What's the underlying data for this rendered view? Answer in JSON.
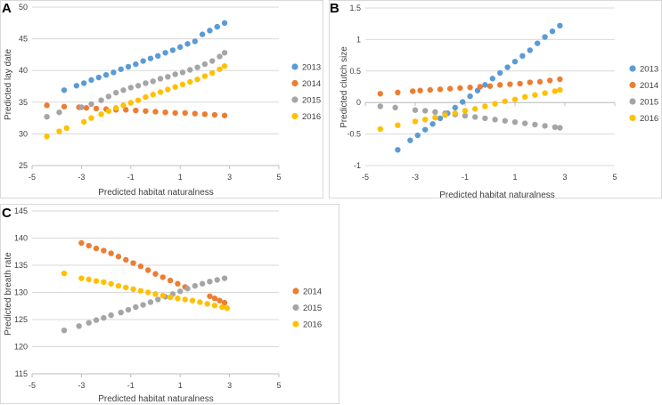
{
  "colors": {
    "2013": "#5b9bd5",
    "2014": "#ed7d31",
    "2015": "#a5a5a5",
    "2016": "#ffc000",
    "grid": "#d9d9d9",
    "axis": "#bfbfbf",
    "text": "#404040"
  },
  "chart_data": [
    {
      "type": "scatter",
      "panel": "A",
      "xlabel": "Predicted habitat naturalness",
      "ylabel": "Predicted lay date",
      "xlim": [
        -5,
        5
      ],
      "ylim": [
        25,
        50
      ],
      "xticks": [
        -5,
        -3,
        -1,
        1,
        3,
        5
      ],
      "xtick_labels": [
        "-5",
        "-3",
        "-1",
        "1",
        "3",
        "5"
      ],
      "yticks": [
        25,
        30,
        35,
        40,
        45,
        50
      ],
      "ytick_labels": [
        "25",
        "30",
        "35",
        "40",
        "45",
        "50"
      ],
      "series": [
        {
          "name": "2013",
          "x": [
            -3.7,
            -3.2,
            -2.9,
            -2.6,
            -2.3,
            -2.0,
            -1.7,
            -1.4,
            -1.1,
            -0.8,
            -0.5,
            -0.2,
            0.1,
            0.4,
            0.7,
            1.0,
            1.3,
            1.6,
            1.9,
            2.2,
            2.5,
            2.8
          ],
          "y": [
            36.9,
            37.6,
            38.0,
            38.5,
            38.9,
            39.3,
            39.7,
            40.2,
            40.6,
            41.0,
            41.5,
            41.9,
            42.3,
            42.8,
            43.2,
            43.7,
            44.2,
            44.6,
            45.7,
            46.3,
            46.9,
            47.5
          ]
        },
        {
          "name": "2014",
          "x": [
            -4.4,
            -3.7,
            -3.1,
            -2.8,
            -2.4,
            -2.0,
            -1.6,
            -1.2,
            -0.8,
            -0.4,
            0.0,
            0.4,
            0.8,
            1.2,
            1.6,
            2.0,
            2.4,
            2.8
          ],
          "y": [
            34.5,
            34.3,
            34.2,
            34.1,
            34.0,
            33.9,
            33.8,
            33.8,
            33.7,
            33.6,
            33.5,
            33.4,
            33.3,
            33.3,
            33.2,
            33.1,
            33.0,
            32.9
          ]
        },
        {
          "name": "2015",
          "x": [
            -4.4,
            -3.9,
            -3.0,
            -2.6,
            -2.2,
            -1.9,
            -1.6,
            -1.3,
            -1.0,
            -0.7,
            -0.4,
            -0.1,
            0.2,
            0.5,
            0.8,
            1.1,
            1.4,
            1.7,
            2.0,
            2.3,
            2.6,
            2.8
          ],
          "y": [
            32.7,
            33.4,
            34.2,
            34.7,
            35.3,
            35.9,
            36.5,
            36.9,
            37.3,
            37.6,
            38.0,
            38.3,
            38.7,
            39.0,
            39.4,
            39.7,
            40.1,
            40.5,
            41.0,
            41.5,
            42.2,
            42.8
          ]
        },
        {
          "name": "2016",
          "x": [
            -4.4,
            -3.9,
            -3.6,
            -2.9,
            -2.6,
            -2.2,
            -1.9,
            -1.6,
            -1.3,
            -1.0,
            -0.7,
            -0.4,
            -0.1,
            0.2,
            0.5,
            0.8,
            1.1,
            1.4,
            1.7,
            2.0,
            2.3,
            2.6,
            2.8
          ],
          "y": [
            29.6,
            30.4,
            30.9,
            31.9,
            32.5,
            33.1,
            33.6,
            34.1,
            34.5,
            34.9,
            35.3,
            35.8,
            36.2,
            36.6,
            37.0,
            37.4,
            37.8,
            38.2,
            38.6,
            39.1,
            39.6,
            40.2,
            40.7
          ]
        }
      ]
    },
    {
      "type": "scatter",
      "panel": "B",
      "xlabel": "Predicted habitat naturalness",
      "ylabel": "Predicted clutch size",
      "xlim": [
        -5,
        5
      ],
      "ylim": [
        -1,
        1.5
      ],
      "xticks": [
        -5,
        -3,
        -1,
        1,
        3,
        5
      ],
      "xtick_labels": [
        "-5",
        "-3",
        "-1",
        "1",
        "3",
        "5"
      ],
      "yticks": [
        -1,
        -0.5,
        0,
        0.5,
        1,
        1.5
      ],
      "ytick_labels": [
        "-1",
        "-0.5",
        "0",
        "0.5",
        "1",
        "1.5"
      ],
      "series": [
        {
          "name": "2013",
          "x": [
            -3.7,
            -3.2,
            -2.9,
            -2.6,
            -2.3,
            -2.0,
            -1.7,
            -1.4,
            -1.1,
            -0.8,
            -0.5,
            -0.2,
            0.1,
            0.4,
            0.7,
            1.0,
            1.3,
            1.6,
            1.9,
            2.2,
            2.5,
            2.8
          ],
          "y": [
            -0.75,
            -0.6,
            -0.52,
            -0.43,
            -0.34,
            -0.25,
            -0.17,
            -0.08,
            0.01,
            0.1,
            0.19,
            0.28,
            0.38,
            0.47,
            0.56,
            0.65,
            0.74,
            0.83,
            0.94,
            1.04,
            1.13,
            1.22
          ]
        },
        {
          "name": "2014",
          "x": [
            -4.4,
            -3.7,
            -3.1,
            -2.8,
            -2.4,
            -2.0,
            -1.6,
            -1.2,
            -0.8,
            -0.4,
            0.0,
            0.4,
            0.8,
            1.2,
            1.6,
            2.0,
            2.4,
            2.8
          ],
          "y": [
            0.14,
            0.16,
            0.18,
            0.19,
            0.2,
            0.21,
            0.22,
            0.23,
            0.24,
            0.25,
            0.26,
            0.28,
            0.29,
            0.3,
            0.32,
            0.33,
            0.35,
            0.37
          ]
        },
        {
          "name": "2015",
          "x": [
            -4.4,
            -3.8,
            -3.0,
            -2.6,
            -2.2,
            -1.8,
            -1.4,
            -1.0,
            -0.6,
            -0.2,
            0.2,
            0.6,
            1.0,
            1.4,
            1.8,
            2.2,
            2.6,
            2.8
          ],
          "y": [
            -0.06,
            -0.08,
            -0.12,
            -0.13,
            -0.15,
            -0.17,
            -0.19,
            -0.21,
            -0.23,
            -0.25,
            -0.27,
            -0.29,
            -0.31,
            -0.33,
            -0.35,
            -0.37,
            -0.39,
            -0.4
          ]
        },
        {
          "name": "2016",
          "x": [
            -4.4,
            -3.7,
            -3.0,
            -2.6,
            -2.2,
            -1.8,
            -1.4,
            -1.0,
            -0.6,
            -0.2,
            0.2,
            0.6,
            1.0,
            1.4,
            1.8,
            2.2,
            2.6,
            2.8
          ],
          "y": [
            -0.42,
            -0.36,
            -0.3,
            -0.27,
            -0.24,
            -0.2,
            -0.17,
            -0.13,
            -0.1,
            -0.06,
            -0.02,
            0.02,
            0.05,
            0.09,
            0.12,
            0.15,
            0.18,
            0.2
          ]
        }
      ]
    },
    {
      "type": "scatter",
      "panel": "C",
      "xlabel": "Predicted habitat naturalness",
      "ylabel": "Predicted breath rate",
      "xlim": [
        -5,
        5
      ],
      "ylim": [
        115,
        145
      ],
      "xticks": [
        -5,
        -3,
        -1,
        1,
        3,
        5
      ],
      "xtick_labels": [
        "-5",
        "-3",
        "-1",
        "1",
        "3",
        "5"
      ],
      "yticks": [
        115,
        120,
        125,
        130,
        135,
        140,
        145
      ],
      "ytick_labels": [
        "115",
        "120",
        "125",
        "130",
        "135",
        "140",
        "145"
      ],
      "series": [
        {
          "name": "2014",
          "x": [
            -3.0,
            -2.7,
            -2.4,
            -2.1,
            -1.8,
            -1.5,
            -1.2,
            -0.9,
            -0.6,
            -0.3,
            0.0,
            0.3,
            0.6,
            0.9,
            1.2,
            2.2,
            2.4,
            2.6,
            2.8
          ],
          "y": [
            139.1,
            138.6,
            138.1,
            137.7,
            137.2,
            136.6,
            136.0,
            135.4,
            134.8,
            134.1,
            133.4,
            132.8,
            132.2,
            131.6,
            131.0,
            129.3,
            128.9,
            128.5,
            128.1
          ]
        },
        {
          "name": "2015",
          "x": [
            -3.7,
            -3.1,
            -2.7,
            -2.4,
            -2.1,
            -1.8,
            -1.4,
            -1.1,
            -0.8,
            -0.5,
            -0.2,
            0.1,
            0.4,
            0.7,
            1.0,
            1.3,
            1.6,
            1.9,
            2.2,
            2.5,
            2.8
          ],
          "y": [
            123.0,
            123.8,
            124.4,
            124.9,
            125.3,
            125.8,
            126.3,
            126.8,
            127.3,
            127.7,
            128.2,
            128.7,
            129.2,
            129.7,
            130.2,
            130.7,
            131.2,
            131.6,
            132.0,
            132.3,
            132.6
          ]
        },
        {
          "name": "2016",
          "x": [
            -3.7,
            -3.0,
            -2.7,
            -2.4,
            -2.1,
            -1.8,
            -1.5,
            -1.2,
            -0.9,
            -0.6,
            -0.3,
            0.0,
            0.3,
            0.6,
            0.9,
            1.2,
            1.5,
            1.8,
            2.1,
            2.4,
            2.7,
            2.9
          ],
          "y": [
            133.5,
            132.6,
            132.4,
            132.1,
            131.9,
            131.6,
            131.2,
            130.9,
            130.6,
            130.3,
            130.0,
            129.7,
            129.4,
            129.1,
            128.9,
            128.7,
            128.5,
            128.2,
            127.9,
            127.6,
            127.3,
            127.1
          ]
        }
      ]
    }
  ]
}
